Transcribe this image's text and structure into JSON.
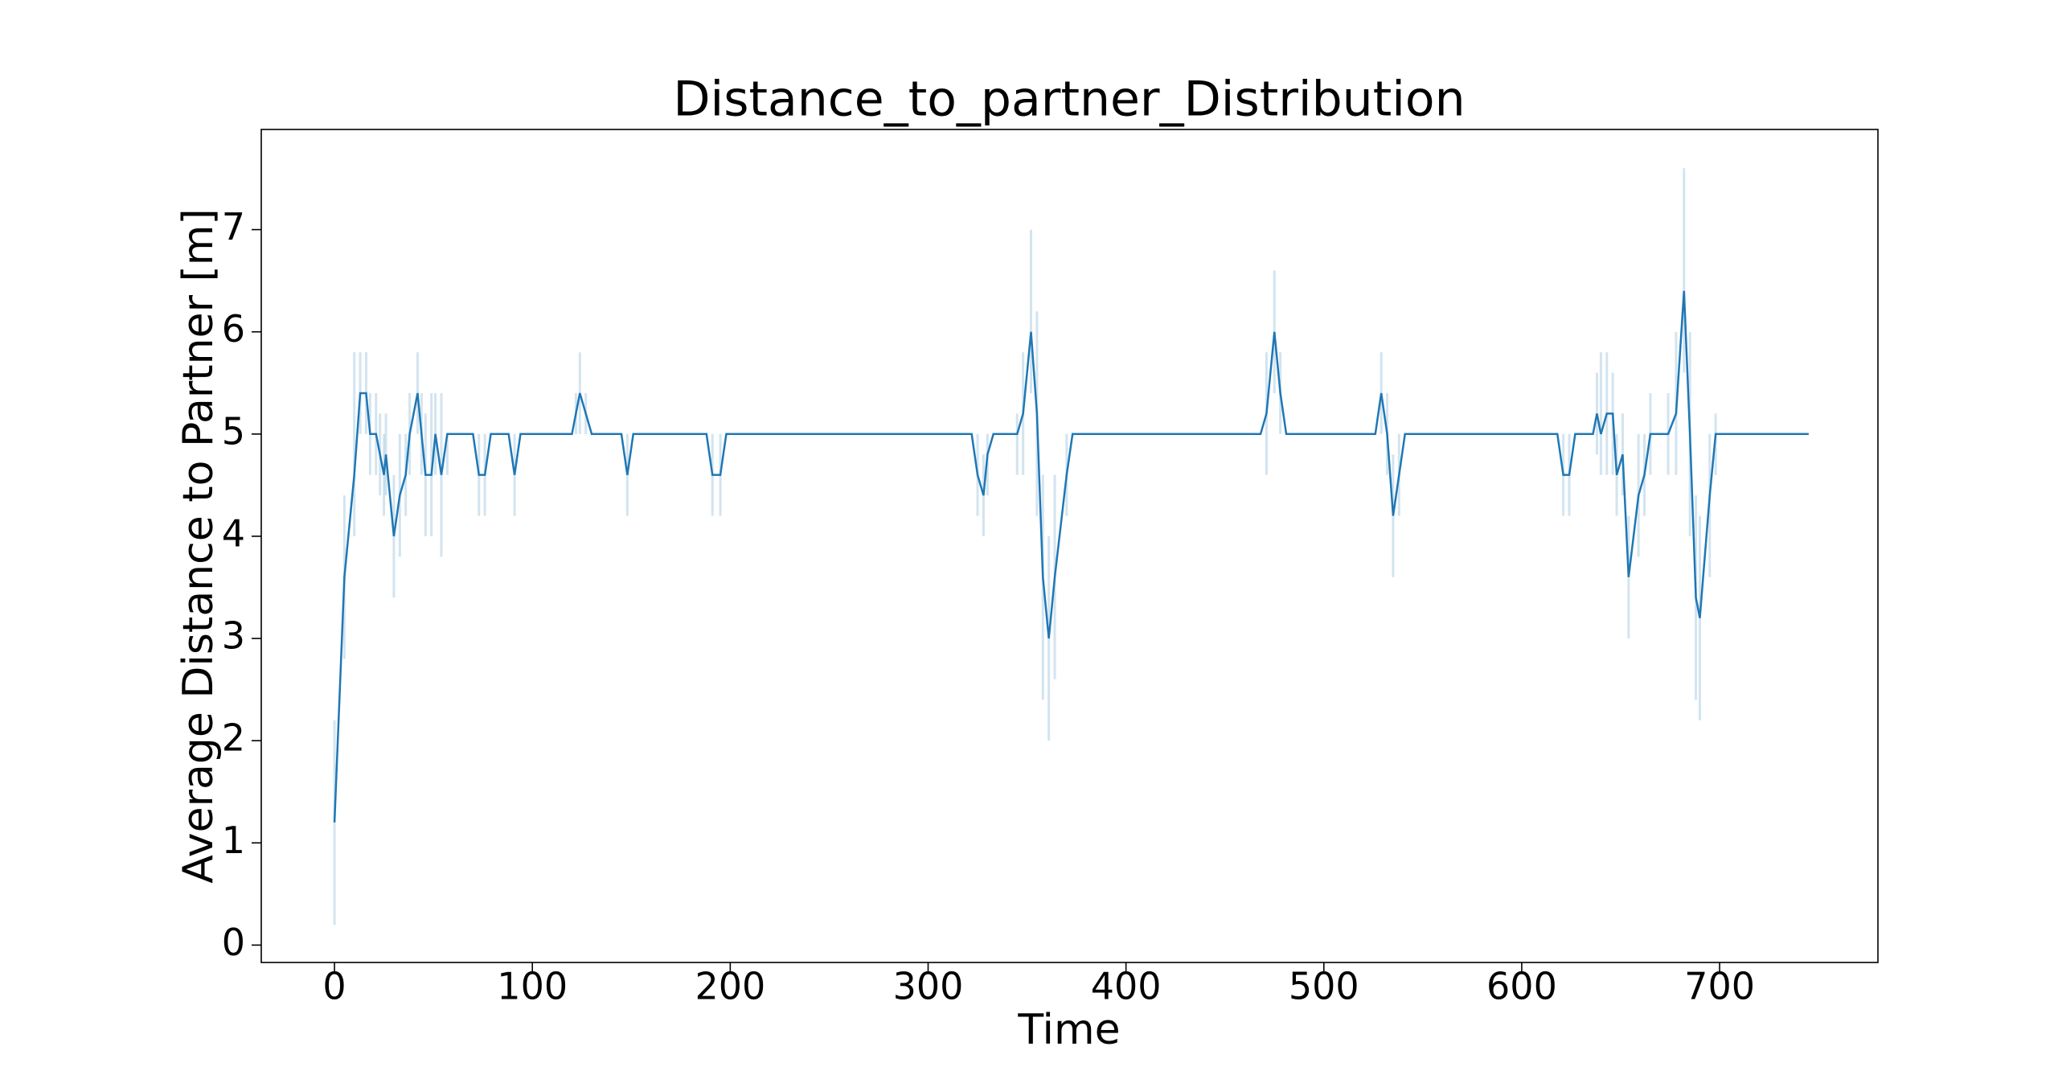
{
  "chart_data": {
    "type": "line",
    "title": "Distance_to_partner_Distribution",
    "x_label": "Time",
    "y_label": "Average Distance to Partner [m]",
    "xlim": [
      -37,
      780
    ],
    "ylim": [
      -0.17,
      7.98
    ],
    "xticks": [
      0,
      100,
      200,
      300,
      400,
      500,
      600,
      700
    ],
    "yticks": [
      0,
      1,
      2,
      3,
      4,
      5,
      6,
      7
    ],
    "x": [
      0,
      5,
      10,
      13,
      16,
      18,
      21,
      23,
      25,
      26,
      30,
      33,
      36,
      38,
      42,
      44,
      46,
      49,
      51,
      54,
      57,
      70,
      73,
      76,
      79,
      88,
      91,
      94,
      120,
      122,
      124,
      127,
      130,
      145,
      148,
      151,
      188,
      191,
      195,
      198,
      322,
      325,
      328,
      330,
      333,
      345,
      348,
      352,
      355,
      358,
      361,
      364,
      370,
      373,
      468,
      471,
      475,
      478,
      481,
      526,
      529,
      532,
      535,
      538,
      541,
      618,
      621,
      624,
      627,
      636,
      638,
      640,
      643,
      646,
      648,
      651,
      654,
      659,
      662,
      665,
      674,
      678,
      682,
      685,
      688,
      690,
      695,
      698,
      745
    ],
    "series": [
      {
        "color": "#1f77b4",
        "values": [
          1.2,
          3.6,
          4.6,
          5.4,
          5.4,
          5.0,
          5.0,
          4.8,
          4.6,
          4.8,
          4.0,
          4.4,
          4.6,
          5.0,
          5.4,
          5.0,
          4.6,
          4.6,
          5.0,
          4.6,
          5.0,
          5.0,
          4.6,
          4.6,
          5.0,
          5.0,
          4.6,
          5.0,
          5.0,
          5.2,
          5.4,
          5.2,
          5.0,
          5.0,
          4.6,
          5.0,
          5.0,
          4.6,
          4.6,
          5.0,
          5.0,
          4.6,
          4.4,
          4.8,
          5.0,
          5.0,
          5.2,
          6.0,
          5.2,
          3.6,
          3.0,
          3.6,
          4.6,
          5.0,
          5.0,
          5.2,
          6.0,
          5.4,
          5.0,
          5.0,
          5.4,
          5.0,
          4.2,
          4.6,
          5.0,
          5.0,
          4.6,
          4.6,
          5.0,
          5.0,
          5.2,
          5.0,
          5.2,
          5.2,
          4.6,
          4.8,
          3.6,
          4.4,
          4.6,
          5.0,
          5.0,
          5.2,
          6.4,
          5.0,
          3.4,
          3.2,
          4.4,
          5.0,
          5.0
        ],
        "lower": [
          0.2,
          2.8,
          4.0,
          5.0,
          5.0,
          4.6,
          4.6,
          4.4,
          4.2,
          4.4,
          3.4,
          3.8,
          4.2,
          4.6,
          5.0,
          4.6,
          4.0,
          4.0,
          4.6,
          3.8,
          4.6,
          5,
          4.2,
          4.2,
          5,
          5,
          4.2,
          5,
          5,
          5,
          5,
          5,
          5,
          5,
          4.2,
          5,
          5,
          4.2,
          4.2,
          5,
          5,
          4.2,
          4.0,
          4.4,
          5,
          4.6,
          4.6,
          5.4,
          4.2,
          2.4,
          2.0,
          2.6,
          4.2,
          5,
          5,
          4.6,
          5.4,
          5.0,
          5,
          5,
          5,
          4.6,
          3.6,
          4.2,
          5,
          5,
          4.2,
          4.2,
          5,
          5,
          4.8,
          4.6,
          4.6,
          4.6,
          4.2,
          4.4,
          3.0,
          3.8,
          4.2,
          4.6,
          4.6,
          4.6,
          5.6,
          4.0,
          2.4,
          2.2,
          3.6,
          4.6,
          5
        ],
        "upper": [
          2.2,
          4.4,
          5.8,
          5.8,
          5.8,
          5.4,
          5.4,
          5.2,
          5.0,
          5.2,
          4.6,
          5.0,
          5.0,
          5.4,
          5.8,
          5.4,
          5.2,
          5.4,
          5.4,
          5.4,
          5.0,
          5,
          5.0,
          5.0,
          5,
          5,
          5.0,
          5,
          5,
          5.4,
          5.8,
          5.4,
          5,
          5,
          5.0,
          5,
          5,
          5,
          5,
          5,
          5,
          5,
          4.8,
          5.0,
          5,
          5.2,
          5.8,
          7.0,
          6.2,
          4.6,
          4.0,
          4.6,
          5.0,
          5,
          5,
          5.8,
          6.6,
          5.8,
          5,
          5,
          5.8,
          5.4,
          4.8,
          5.0,
          5,
          5,
          5,
          5,
          5,
          5,
          5.6,
          5.8,
          5.8,
          5.6,
          5.0,
          5.2,
          4.2,
          5.0,
          5.0,
          5.4,
          5.4,
          6.0,
          7.6,
          6.0,
          4.4,
          4.2,
          5.0,
          5.2,
          5
        ]
      }
    ]
  }
}
